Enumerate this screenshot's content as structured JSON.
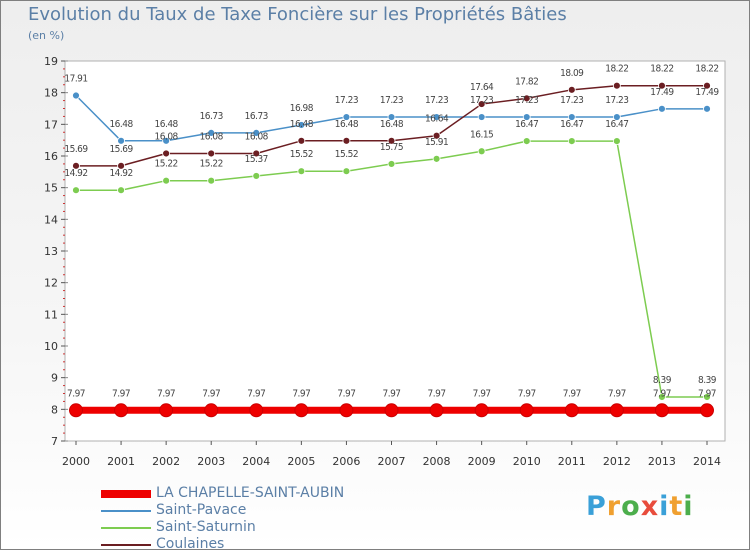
{
  "title": "Evolution du Taux de Taxe Foncière sur les Propriétés Bâties",
  "unit_label": "(en %)",
  "logo": {
    "text": "Proxiti",
    "colors": [
      "#3aa0d8",
      "#f0a030",
      "#4cae4c",
      "#e84c3c",
      "#3aa0d8",
      "#f0a030",
      "#4cae4c"
    ]
  },
  "chart_data": {
    "type": "line",
    "title": "Evolution du Taux de Taxe Foncière sur les Propriétés Bâties",
    "ylabel": "(en %)",
    "xlabel": "",
    "x": [
      "2000",
      "2001",
      "2002",
      "2003",
      "2004",
      "2005",
      "2006",
      "2007",
      "2008",
      "2009",
      "2010",
      "2011",
      "2012",
      "2013",
      "2014"
    ],
    "ylim": [
      7,
      19
    ],
    "yticks": [
      7,
      8,
      9,
      10,
      11,
      12,
      13,
      14,
      15,
      16,
      17,
      18,
      19
    ],
    "grid": false,
    "legend_position": "bottom",
    "series": [
      {
        "name": "LA CHAPELLE-SAINT-AUBIN",
        "color": "#ee0000",
        "values": [
          7.97,
          7.97,
          7.97,
          7.97,
          7.97,
          7.97,
          7.97,
          7.97,
          7.97,
          7.97,
          7.97,
          7.97,
          7.97,
          7.97,
          7.97
        ],
        "labels": [
          "7.97",
          "7.97",
          "7.97",
          "7.97",
          "7.97",
          "7.97",
          "7.97",
          "7.97",
          "7.97",
          "7.97",
          "7.97",
          "7.97",
          "7.97",
          "7.97",
          "7.97"
        ]
      },
      {
        "name": "Saint-Pavace",
        "color": "#4a90c8",
        "values": [
          17.91,
          16.48,
          16.48,
          16.73,
          16.73,
          16.98,
          17.23,
          17.23,
          17.23,
          17.23,
          17.23,
          17.23,
          17.23,
          17.49,
          17.49
        ],
        "labels": [
          "17.91",
          "16.48",
          "16.48",
          "16.73",
          "16.73",
          "16.98",
          "17.23",
          "17.23",
          "17.23",
          "17.23",
          "17.23",
          "17.23",
          "17.23",
          "17.49",
          "17.49"
        ]
      },
      {
        "name": "Saint-Saturnin",
        "color": "#7dcc50",
        "values": [
          14.92,
          14.92,
          15.22,
          15.22,
          15.37,
          15.52,
          15.52,
          15.75,
          15.91,
          16.15,
          16.47,
          16.47,
          16.47,
          8.39,
          8.39
        ],
        "labels": [
          "14.92",
          "14.92",
          "15.22",
          "15.22",
          "15.37",
          "15.52",
          "15.52",
          "15.75",
          "15.91",
          "16.15",
          "16.47",
          "16.47",
          "16.47",
          "8.39",
          "8.39"
        ]
      },
      {
        "name": "Coulaines",
        "color": "#6b1e22",
        "values": [
          15.69,
          15.69,
          16.08,
          16.08,
          16.08,
          16.48,
          16.48,
          16.48,
          16.64,
          17.64,
          17.82,
          18.09,
          18.22,
          18.22,
          18.22
        ],
        "labels": [
          "15.69",
          "15.69",
          "16.08",
          "16.08",
          "16.08",
          "16.48",
          "16.48",
          "16.48",
          "16.64",
          "17.64",
          "17.82",
          "18.09",
          "18.22",
          "18.22",
          "18.22"
        ]
      }
    ]
  }
}
